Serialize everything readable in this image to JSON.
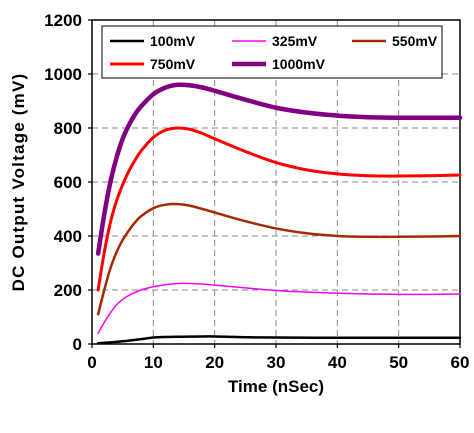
{
  "chart_data": {
    "type": "line",
    "xlabel": "Time (nSec)",
    "ylabel": "DC Output  Voltage (mV)",
    "xlim": [
      0,
      60
    ],
    "ylim": [
      0,
      1200
    ],
    "xticks": [
      0,
      10,
      20,
      30,
      40,
      50,
      60
    ],
    "yticks": [
      0,
      200,
      400,
      600,
      800,
      1000,
      1200
    ],
    "grid": true,
    "legend_position": "top",
    "series": [
      {
        "name": "100mV",
        "color": "#000000",
        "x": [
          1,
          3,
          5,
          8,
          10,
          12,
          15,
          18,
          20,
          22,
          25,
          30,
          40,
          50,
          60
        ],
        "y": [
          3,
          6,
          10,
          18,
          24,
          26,
          27,
          28,
          28,
          27,
          25,
          24,
          23,
          23,
          23
        ]
      },
      {
        "name": "325mV",
        "color": "#ff00ff",
        "x": [
          1,
          2,
          3,
          4,
          5,
          6,
          8,
          10,
          12,
          14,
          16,
          18,
          20,
          25,
          30,
          35,
          40,
          45,
          50,
          55,
          60
        ],
        "y": [
          40,
          80,
          115,
          145,
          165,
          180,
          200,
          212,
          220,
          224,
          224,
          222,
          218,
          208,
          198,
          192,
          188,
          185,
          184,
          184,
          185
        ]
      },
      {
        "name": "550mV",
        "color": "#a52a00",
        "x": [
          1,
          2,
          3,
          4,
          5,
          6,
          7,
          8,
          10,
          12,
          14,
          16,
          18,
          20,
          25,
          30,
          35,
          40,
          45,
          50,
          55,
          60
        ],
        "y": [
          110,
          200,
          280,
          340,
          385,
          420,
          450,
          473,
          503,
          516,
          518,
          512,
          500,
          487,
          455,
          428,
          410,
          400,
          397,
          397,
          398,
          400
        ]
      },
      {
        "name": "750mV",
        "color": "#ff0000",
        "x": [
          1,
          2,
          3,
          4,
          5,
          6,
          7,
          8,
          10,
          12,
          14,
          16,
          18,
          20,
          25,
          30,
          35,
          40,
          45,
          50,
          55,
          60
        ],
        "y": [
          200,
          340,
          450,
          530,
          590,
          640,
          680,
          715,
          765,
          792,
          800,
          795,
          780,
          760,
          713,
          672,
          645,
          630,
          623,
          622,
          623,
          626
        ]
      },
      {
        "name": "1000mV",
        "color": "#800080",
        "x": [
          1,
          2,
          3,
          4,
          5,
          6,
          7,
          8,
          10,
          12,
          14,
          16,
          18,
          20,
          25,
          30,
          35,
          40,
          45,
          50,
          55,
          60
        ],
        "y": [
          335,
          480,
          600,
          690,
          760,
          810,
          850,
          880,
          925,
          950,
          960,
          958,
          950,
          938,
          905,
          875,
          857,
          846,
          840,
          838,
          838,
          838
        ]
      }
    ]
  }
}
